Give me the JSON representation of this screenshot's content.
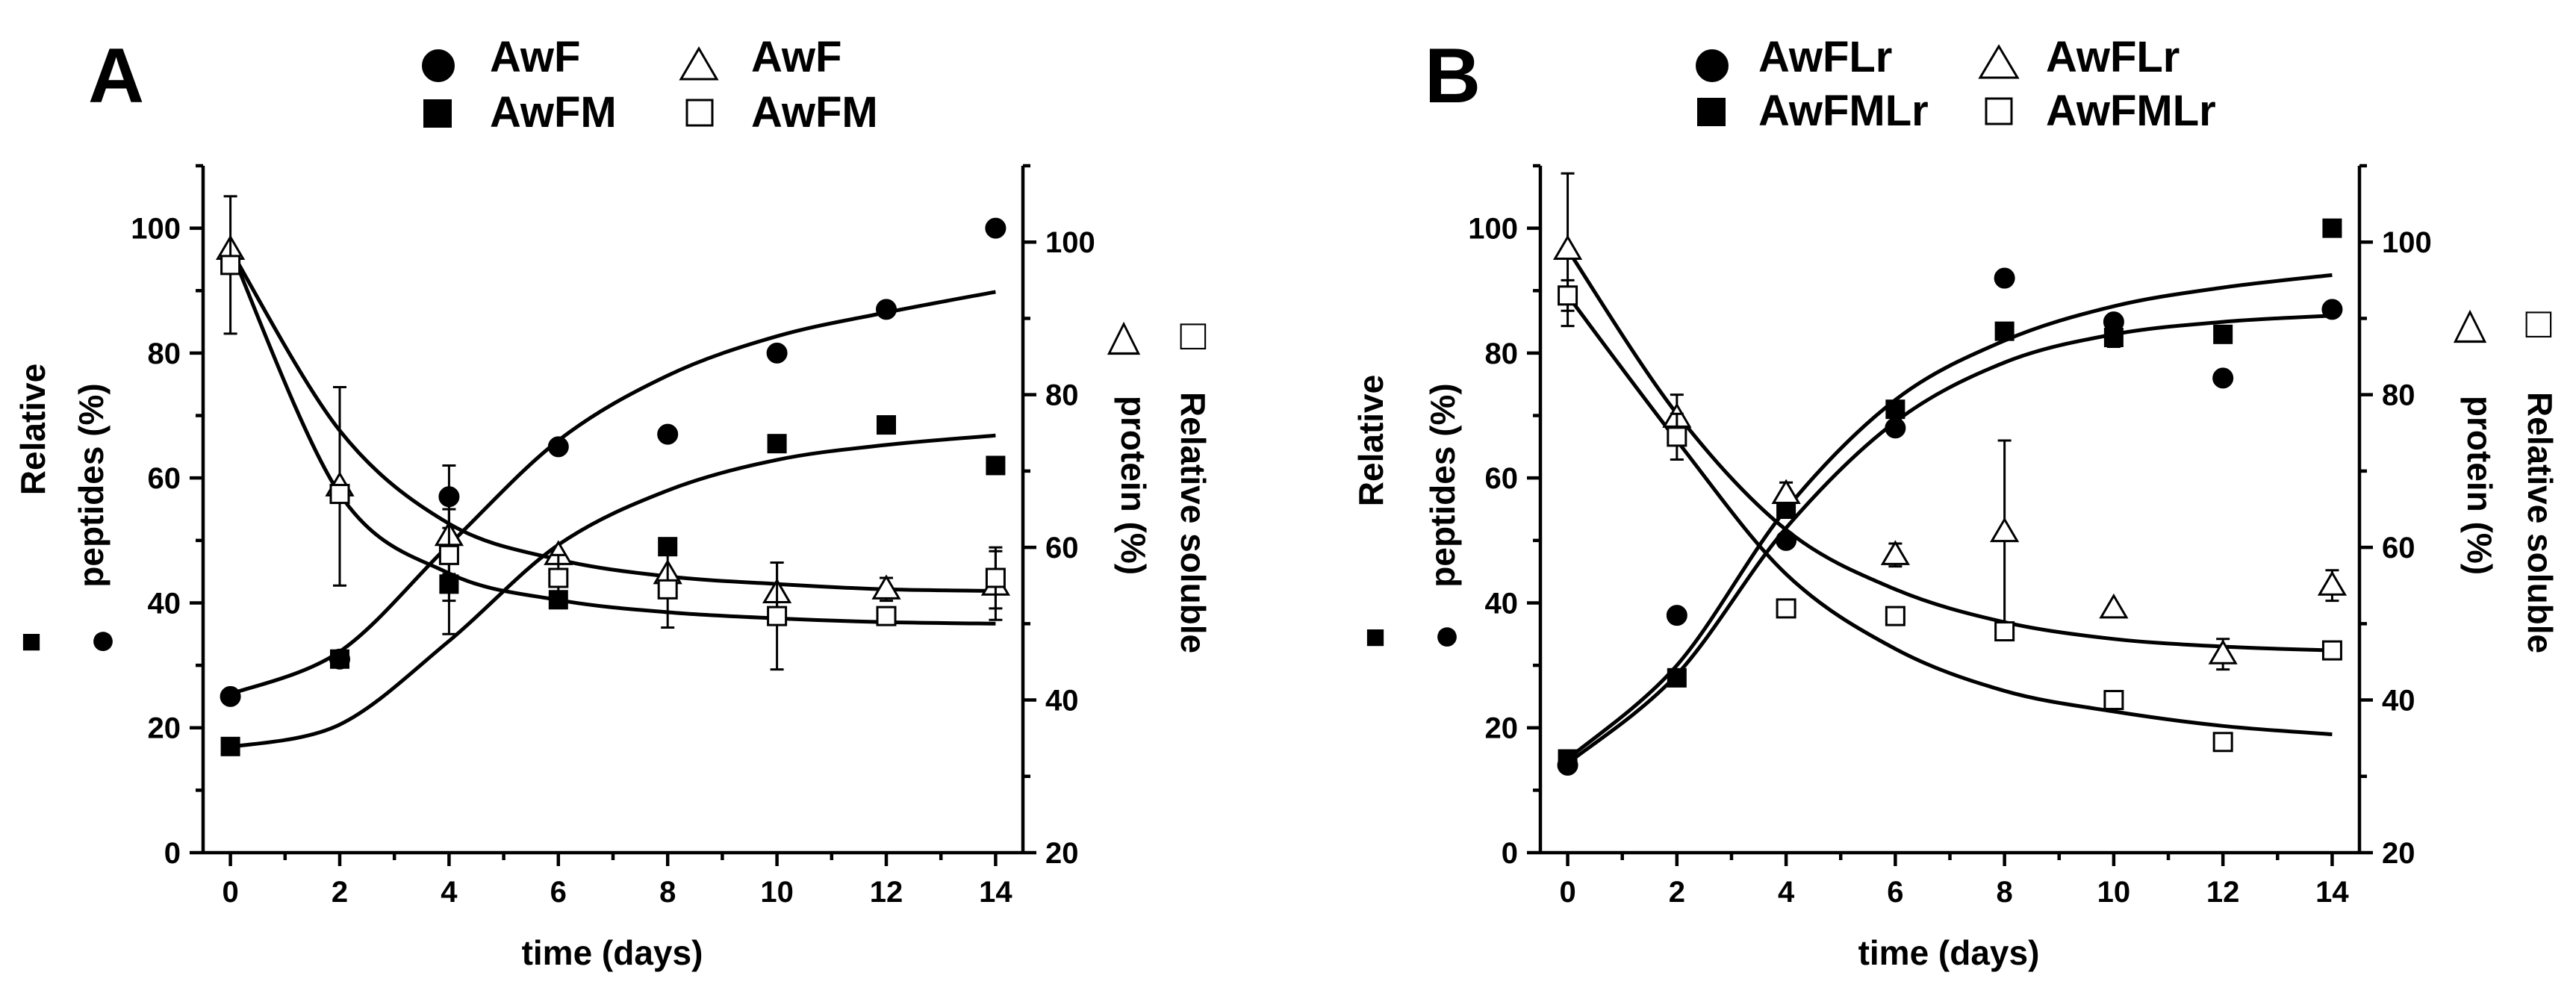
{
  "chart_data": [
    {
      "type": "scatter",
      "panel_label": "A",
      "xlabel": "time (days)",
      "ylabel_left": [
        "Relative",
        "peptides (%)"
      ],
      "ylabel_right": [
        "Relative soluble",
        "protein (%)"
      ],
      "left_axis_symbols": [
        "■",
        "●"
      ],
      "right_axis_symbols": [
        "△",
        "□"
      ],
      "x_ticks": [
        0,
        2,
        4,
        6,
        8,
        10,
        12,
        14
      ],
      "xlim": [
        -0.5,
        14.5
      ],
      "ylim_left": [
        0,
        110
      ],
      "y_ticks_left": [
        0,
        20,
        40,
        60,
        80,
        100
      ],
      "ylim_right": [
        20,
        110
      ],
      "y_ticks_right": [
        20,
        40,
        60,
        80,
        100
      ],
      "legend": [
        {
          "label": "AwF",
          "marker": "circle",
          "filled": true
        },
        {
          "label": "AwF",
          "marker": "triangle",
          "filled": false
        },
        {
          "label": "AwFM",
          "marker": "square",
          "filled": true
        },
        {
          "label": "AwFM",
          "marker": "square",
          "filled": false
        }
      ],
      "series": [
        {
          "name": "AwF",
          "axis": "left",
          "marker": "circle",
          "filled": true,
          "x": [
            0,
            2,
            4,
            6,
            8,
            10,
            12,
            14
          ],
          "y": [
            25,
            31,
            57,
            65,
            67,
            80,
            87,
            100
          ],
          "err": [
            0,
            0,
            5,
            0,
            0,
            0,
            0,
            0
          ],
          "fit": [
            25.4,
            32.2,
            49.3,
            66.0,
            76.4,
            82.7,
            86.5,
            89.8
          ]
        },
        {
          "name": "AwFM",
          "axis": "left",
          "marker": "square",
          "filled": true,
          "x": [
            0,
            2,
            4,
            6,
            8,
            10,
            12,
            14
          ],
          "y": [
            17,
            31,
            43,
            40.5,
            49,
            65.5,
            68.5,
            62
          ],
          "err": [
            0,
            0,
            8,
            0,
            0,
            0,
            0,
            0
          ],
          "fit": [
            16.9,
            20.5,
            33.9,
            49.3,
            58.0,
            62.9,
            65.3,
            66.8
          ]
        },
        {
          "name": "AwF",
          "axis": "right",
          "marker": "triangle",
          "filled": false,
          "x": [
            0,
            2,
            4,
            6,
            8,
            10,
            12,
            14
          ],
          "y": [
            99,
            68,
            61.5,
            59,
            56.5,
            54,
            54.5,
            55
          ],
          "err": [
            0,
            13,
            5,
            0,
            0,
            4,
            1.5,
            4.5
          ],
          "fit": [
            99.0,
            75.3,
            63.1,
            58.4,
            56.2,
            55.2,
            54.5,
            54.3
          ]
        },
        {
          "name": "AwFM",
          "axis": "right",
          "marker": "square",
          "filled": false,
          "x": [
            0,
            2,
            4,
            6,
            8,
            10,
            12,
            14
          ],
          "y": [
            97,
            67,
            59,
            56,
            54.5,
            51,
            51,
            56
          ],
          "err": [
            9,
            0,
            6,
            3,
            5,
            7,
            1,
            4
          ],
          "fit": [
            99.0,
            67.0,
            56.6,
            53.1,
            51.5,
            50.7,
            50.2,
            50.0
          ]
        }
      ]
    },
    {
      "type": "scatter",
      "panel_label": "B",
      "xlabel": "time (days)",
      "ylabel_left": [
        "Relative",
        "peptides (%)"
      ],
      "ylabel_right": [
        "Relative soluble",
        "protein (%)"
      ],
      "left_axis_symbols": [
        "■",
        "●"
      ],
      "right_axis_symbols": [
        "△",
        "□"
      ],
      "x_ticks": [
        0,
        2,
        4,
        6,
        8,
        10,
        12,
        14
      ],
      "xlim": [
        -0.5,
        14.5
      ],
      "ylim_left": [
        0,
        110
      ],
      "y_ticks_left": [
        0,
        20,
        40,
        60,
        80,
        100
      ],
      "ylim_right": [
        20,
        110
      ],
      "y_ticks_right": [
        20,
        40,
        60,
        80,
        100
      ],
      "legend": [
        {
          "label": "AwFLr",
          "marker": "circle",
          "filled": true
        },
        {
          "label": "AwFLr",
          "marker": "triangle",
          "filled": false
        },
        {
          "label": "AwFMLr",
          "marker": "square",
          "filled": true
        },
        {
          "label": "AwFMLr",
          "marker": "square",
          "filled": false
        }
      ],
      "series": [
        {
          "name": "AwFLr",
          "axis": "left",
          "marker": "circle",
          "filled": true,
          "x": [
            0,
            2,
            4,
            6,
            8,
            10,
            12,
            14
          ],
          "y": [
            14,
            38,
            50,
            68,
            92,
            85,
            76,
            87
          ],
          "err": [
            0,
            0,
            0,
            0,
            0,
            0,
            0,
            0
          ],
          "fit": [
            14.3,
            28.5,
            52.0,
            69.0,
            78.5,
            83.0,
            85.0,
            86.0
          ]
        },
        {
          "name": "AwFMLr",
          "axis": "left",
          "marker": "square",
          "filled": true,
          "x": [
            0,
            2,
            4,
            6,
            8,
            10,
            12,
            14
          ],
          "y": [
            15,
            28,
            55,
            71,
            83.5,
            82.5,
            83,
            100
          ],
          "err": [
            0,
            0,
            0,
            0,
            0,
            1.5,
            0,
            0
          ],
          "fit": [
            15.0,
            30.0,
            55.0,
            72.5,
            82.0,
            87.5,
            90.5,
            92.5
          ]
        },
        {
          "name": "AwFLr",
          "axis": "right",
          "marker": "triangle",
          "filled": false,
          "x": [
            0,
            2,
            4,
            6,
            8,
            10,
            12,
            14
          ],
          "y": [
            99,
            77,
            67,
            59,
            62,
            52,
            46,
            55
          ],
          "err": [
            10,
            3,
            1.5,
            1.5,
            12,
            0,
            2,
            2
          ],
          "fit": [
            99.0,
            77.5,
            62.3,
            54.5,
            50.2,
            48.0,
            47.0,
            46.5
          ]
        },
        {
          "name": "AwFMLr",
          "axis": "right",
          "marker": "square",
          "filled": false,
          "x": [
            0,
            2,
            4,
            6,
            8,
            10,
            12,
            14
          ],
          "y": [
            93,
            74.5,
            52,
            51,
            49,
            40,
            34.5,
            46.5
          ],
          "err": [
            2,
            3,
            0,
            1,
            0,
            0,
            0,
            0
          ],
          "fit": [
            93.0,
            74.0,
            56.5,
            46.7,
            41.2,
            38.5,
            36.6,
            35.5
          ]
        }
      ]
    }
  ]
}
